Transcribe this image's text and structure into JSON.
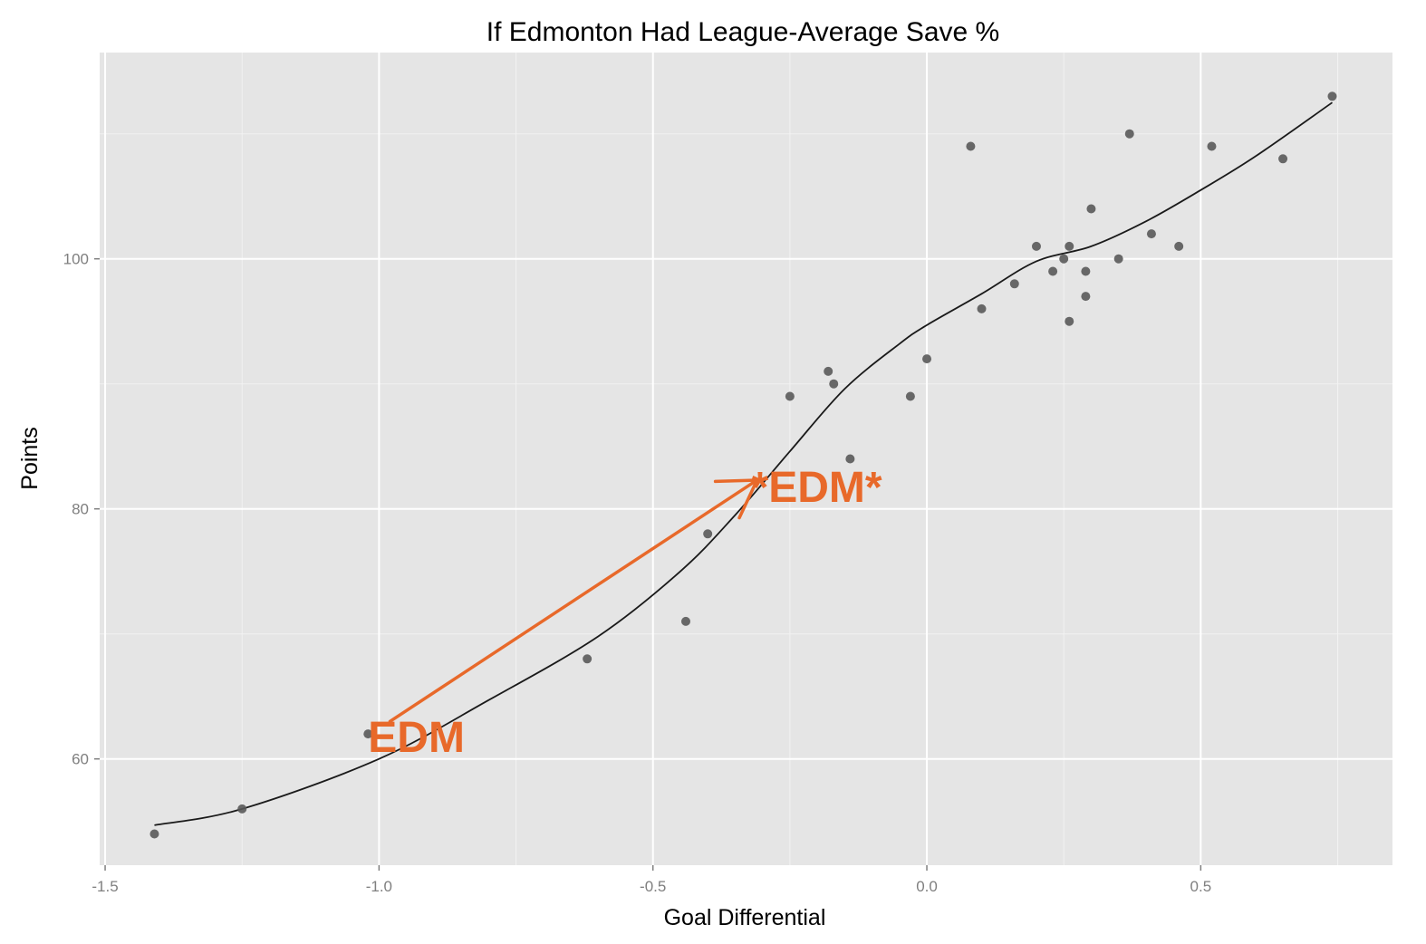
{
  "chart_data": {
    "type": "scatter",
    "title": "If Edmonton Had League-Average Save %",
    "xlabel": "Goal Differential",
    "ylabel": "Points",
    "xlim": [
      -1.51,
      0.85
    ],
    "ylim": [
      51.5,
      116.5
    ],
    "x_ticks": [
      -1.5,
      -1.0,
      -0.5,
      0.0,
      0.5
    ],
    "x_tick_labels": [
      "-1.5",
      "-1.0",
      "-0.5",
      "0.0",
      "0.5"
    ],
    "y_ticks": [
      60,
      80,
      100
    ],
    "y_tick_labels": [
      "60",
      "80",
      "100"
    ],
    "grid": true,
    "legend": "none",
    "colors": {
      "panel": "#e5e5e5",
      "grid": "#ffffff",
      "points": "#595959",
      "smooth": "#1a1a1a",
      "annotation": "#e8692a"
    },
    "points": [
      {
        "x": -1.41,
        "y": 54
      },
      {
        "x": -1.25,
        "y": 56
      },
      {
        "x": -1.02,
        "y": 62
      },
      {
        "x": -0.62,
        "y": 68
      },
      {
        "x": -0.44,
        "y": 71
      },
      {
        "x": -0.4,
        "y": 78
      },
      {
        "x": -0.25,
        "y": 89
      },
      {
        "x": -0.18,
        "y": 91
      },
      {
        "x": -0.17,
        "y": 90
      },
      {
        "x": -0.14,
        "y": 84
      },
      {
        "x": -0.03,
        "y": 89
      },
      {
        "x": 0.0,
        "y": 92
      },
      {
        "x": 0.08,
        "y": 109
      },
      {
        "x": 0.1,
        "y": 96
      },
      {
        "x": 0.16,
        "y": 98
      },
      {
        "x": 0.2,
        "y": 101
      },
      {
        "x": 0.23,
        "y": 99
      },
      {
        "x": 0.25,
        "y": 100
      },
      {
        "x": 0.26,
        "y": 101
      },
      {
        "x": 0.26,
        "y": 95
      },
      {
        "x": 0.29,
        "y": 99
      },
      {
        "x": 0.29,
        "y": 97
      },
      {
        "x": 0.3,
        "y": 104
      },
      {
        "x": 0.35,
        "y": 100
      },
      {
        "x": 0.37,
        "y": 110
      },
      {
        "x": 0.41,
        "y": 102
      },
      {
        "x": 0.46,
        "y": 101
      },
      {
        "x": 0.52,
        "y": 109
      },
      {
        "x": 0.65,
        "y": 108
      },
      {
        "x": 0.74,
        "y": 113
      }
    ],
    "smooth_line": {
      "x": [
        -1.41,
        -1.25,
        -1.0,
        -0.8,
        -0.6,
        -0.45,
        -0.35,
        -0.25,
        -0.15,
        -0.05,
        0.0,
        0.1,
        0.2,
        0.3,
        0.4,
        0.5,
        0.6,
        0.74
      ],
      "y": [
        54.7,
        56.0,
        60.0,
        64.7,
        69.8,
        75.0,
        79.5,
        84.6,
        89.6,
        93.2,
        94.7,
        97.2,
        99.8,
        101.0,
        103.0,
        105.5,
        108.2,
        112.5
      ]
    },
    "annotations": [
      {
        "text": "EDM",
        "x": -1.02,
        "y": 61.8
      },
      {
        "text": "*EDM*",
        "x": -0.32,
        "y": 81.8
      }
    ],
    "arrow": {
      "from": {
        "x": -0.98,
        "y": 63.0
      },
      "to": {
        "x": -0.31,
        "y": 82.3
      }
    }
  }
}
